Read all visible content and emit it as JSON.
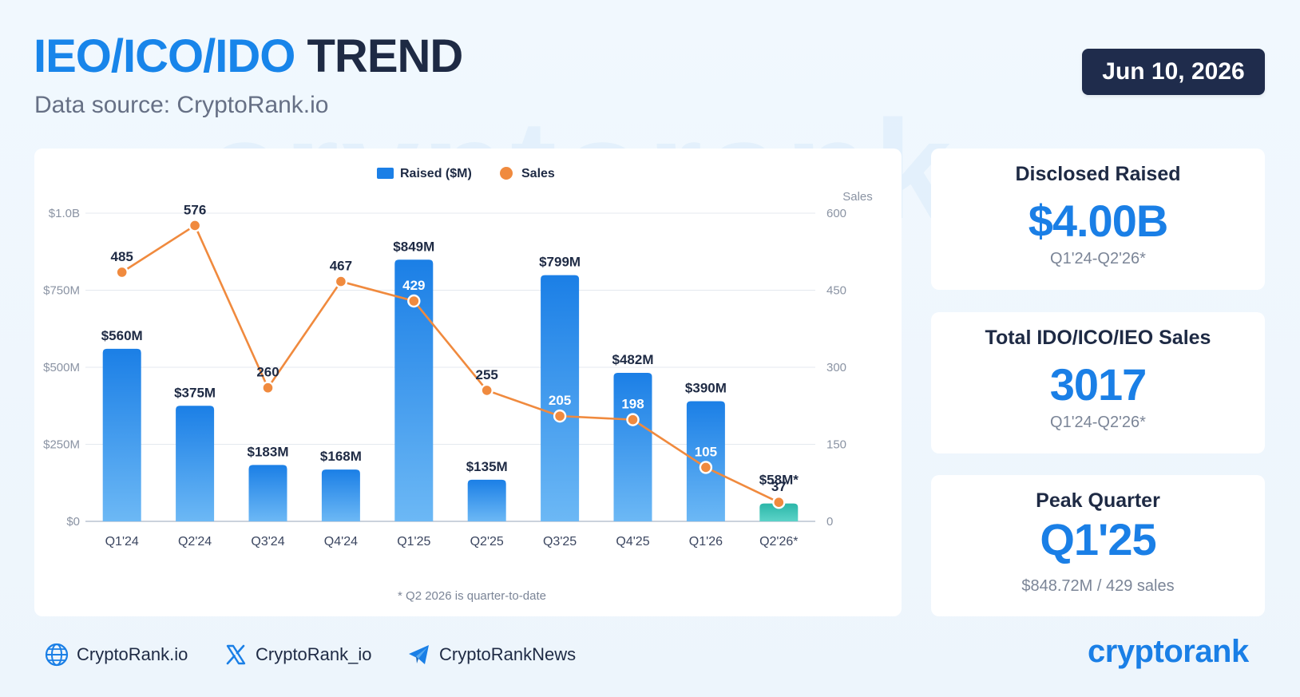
{
  "header": {
    "title_accent": "IEO/ICO/IDO",
    "title_rest": "TREND",
    "subtitle": "Data source: CryptoRank.io",
    "date": "Jun 10, 2026"
  },
  "watermark": "cryptorank",
  "stats": [
    {
      "label": "Disclosed Raised",
      "value": "$4.00B",
      "sub": "Q1'24-Q2'26*"
    },
    {
      "label": "Total IDO/ICO/IEO Sales",
      "value": "3017",
      "sub": "Q1'24-Q2'26*"
    },
    {
      "label": "Peak Quarter",
      "value": "Q1'25",
      "sub": "$848.72M / 429 sales"
    }
  ],
  "footer": {
    "website": "CryptoRank.io",
    "twitter": "CryptoRank_io",
    "telegram": "CryptoRankNews",
    "brand": "cryptorank"
  },
  "colors": {
    "accent": "#1a7fe6",
    "bar_top": "#1b7fe6",
    "bar_bottom": "#6cb8f5",
    "last_bar_top": "#2bb6a8",
    "last_bar_bottom": "#5cd3c8",
    "line": "#f08a3e",
    "dark": "#1e2a44"
  },
  "chart_data": {
    "type": "bar",
    "categories": [
      "Q1'24",
      "Q2'24",
      "Q3'24",
      "Q4'24",
      "Q1'25",
      "Q2'25",
      "Q3'25",
      "Q4'25",
      "Q1'26",
      "Q2'26*"
    ],
    "series": [
      {
        "name": "Raised ($M)",
        "type": "bar",
        "axis": "left",
        "values": [
          560,
          375,
          183,
          168,
          849,
          135,
          799,
          482,
          390,
          58
        ],
        "labels": [
          "$560M",
          "$375M",
          "$183M",
          "$168M",
          "$849M",
          "$135M",
          "$799M",
          "$482M",
          "$390M",
          "$58M*"
        ]
      },
      {
        "name": "Sales",
        "type": "line",
        "axis": "right",
        "values": [
          485,
          576,
          260,
          467,
          429,
          255,
          205,
          198,
          105,
          37
        ]
      }
    ],
    "y_left": {
      "ticks": [
        0,
        250,
        500,
        750,
        1000
      ],
      "tick_labels": [
        "$0",
        "$250M",
        "$500M",
        "$750M",
        "$1.0B"
      ],
      "ylim": [
        0,
        1000
      ]
    },
    "y_right": {
      "label": "Sales",
      "ticks": [
        0,
        150,
        300,
        450,
        600
      ],
      "tick_labels": [
        "0",
        "150",
        "300",
        "450",
        "600"
      ],
      "ylim": [
        0,
        600
      ]
    },
    "legend_position": "top-center",
    "grid": true,
    "footnote": "* Q2 2026 is quarter-to-date"
  }
}
